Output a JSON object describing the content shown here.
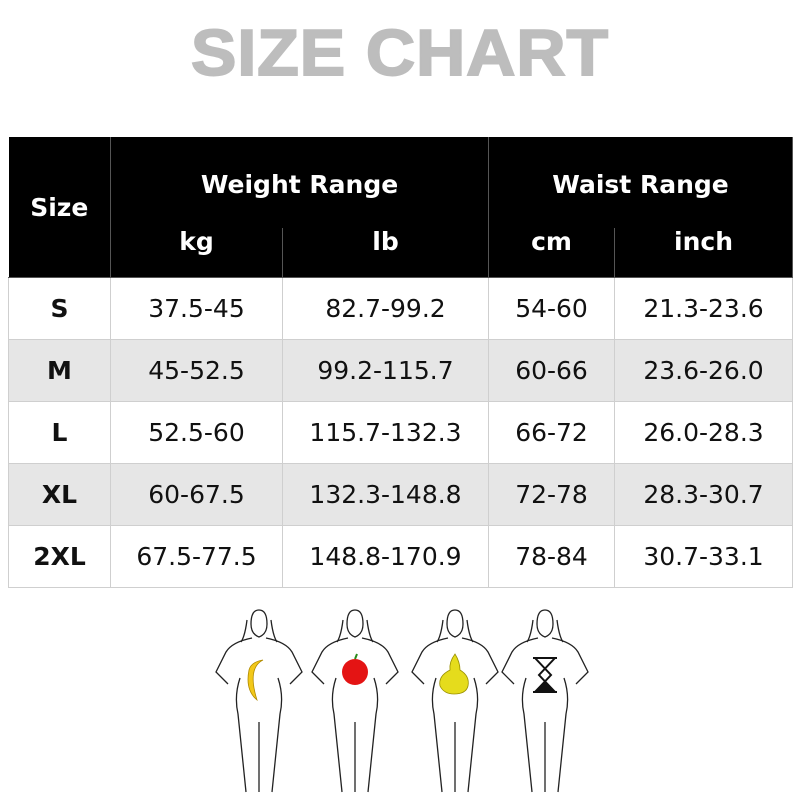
{
  "title": "SIZE CHART",
  "table": {
    "size_header": "Size",
    "groups": [
      "Weight Range",
      "Waist Range"
    ],
    "units": [
      "kg",
      "lb",
      "cm",
      "inch"
    ],
    "rows": [
      {
        "size": "S",
        "kg": "37.5-45",
        "lb": "82.7-99.2",
        "cm": "54-60",
        "inch": "21.3-23.6"
      },
      {
        "size": "M",
        "kg": "45-52.5",
        "lb": "99.2-115.7",
        "cm": "60-66",
        "inch": "23.6-26.0"
      },
      {
        "size": "L",
        "kg": "52.5-60",
        "lb": "115.7-132.3",
        "cm": "66-72",
        "inch": "26.0-28.3"
      },
      {
        "size": "XL",
        "kg": "60-67.5",
        "lb": "132.3-148.8",
        "cm": "72-78",
        "inch": "28.3-30.7"
      },
      {
        "size": "2XL",
        "kg": "67.5-77.5",
        "lb": "148.8-170.9",
        "cm": "78-84",
        "inch": "30.7-33.1"
      }
    ]
  },
  "body_shapes": [
    "banana-icon",
    "apple-icon",
    "pear-icon",
    "hourglass-icon"
  ],
  "colors": {
    "header_bg": "#000000",
    "alt_row": "#e6e6e6",
    "title": "#bdbdbd"
  }
}
